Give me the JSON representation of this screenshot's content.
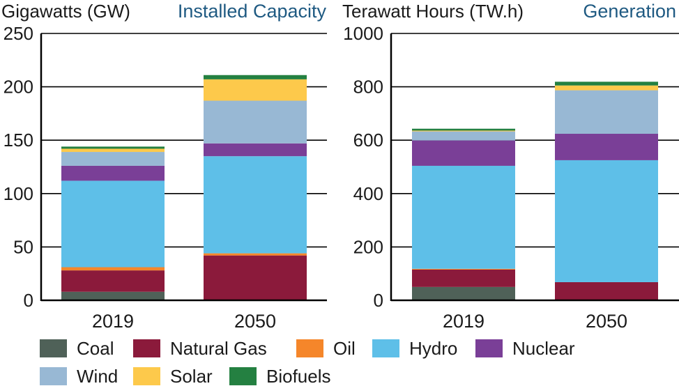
{
  "chart_data": [
    {
      "type": "bar",
      "stacked": true,
      "title": "Installed Capacity",
      "ylabel": "Gigawatts (GW)",
      "xlabel": "",
      "categories": [
        "2019",
        "2050"
      ],
      "ylim": [
        0,
        250
      ],
      "yticks": [
        0,
        50,
        100,
        150,
        200,
        250
      ],
      "series": [
        {
          "name": "Coal",
          "values": [
            8,
            0
          ]
        },
        {
          "name": "Natural Gas",
          "values": [
            20,
            42
          ]
        },
        {
          "name": "Oil",
          "values": [
            3,
            2
          ]
        },
        {
          "name": "Hydro",
          "values": [
            81,
            91
          ]
        },
        {
          "name": "Nuclear",
          "values": [
            14,
            12
          ]
        },
        {
          "name": "Wind",
          "values": [
            13,
            40
          ]
        },
        {
          "name": "Solar",
          "values": [
            3,
            20
          ]
        },
        {
          "name": "Biofuels",
          "values": [
            2,
            4
          ]
        }
      ]
    },
    {
      "type": "bar",
      "stacked": true,
      "title": "Generation",
      "ylabel": "Terawatt Hours (TW.h)",
      "xlabel": "",
      "categories": [
        "2019",
        "2050"
      ],
      "ylim": [
        0,
        1000
      ],
      "yticks": [
        0,
        200,
        400,
        600,
        800,
        1000
      ],
      "series": [
        {
          "name": "Coal",
          "values": [
            50,
            0
          ]
        },
        {
          "name": "Natural Gas",
          "values": [
            65,
            68
          ]
        },
        {
          "name": "Oil",
          "values": [
            3,
            0
          ]
        },
        {
          "name": "Hydro",
          "values": [
            386,
            457
          ]
        },
        {
          "name": "Nuclear",
          "values": [
            95,
            99
          ]
        },
        {
          "name": "Wind",
          "values": [
            34,
            163
          ]
        },
        {
          "name": "Solar",
          "values": [
            3,
            18
          ]
        },
        {
          "name": "Biofuels",
          "values": [
            7,
            14
          ]
        }
      ]
    }
  ],
  "legend": {
    "items": [
      {
        "name": "Coal",
        "color": "#4f6158"
      },
      {
        "name": "Natural Gas",
        "color": "#8b1a3b"
      },
      {
        "name": "Oil",
        "color": "#f5862a"
      },
      {
        "name": "Hydro",
        "color": "#5ebfe8"
      },
      {
        "name": "Nuclear",
        "color": "#7a3f97"
      },
      {
        "name": "Wind",
        "color": "#98b8d4"
      },
      {
        "name": "Solar",
        "color": "#fdc94b"
      },
      {
        "name": "Biofuels",
        "color": "#248041"
      }
    ]
  }
}
